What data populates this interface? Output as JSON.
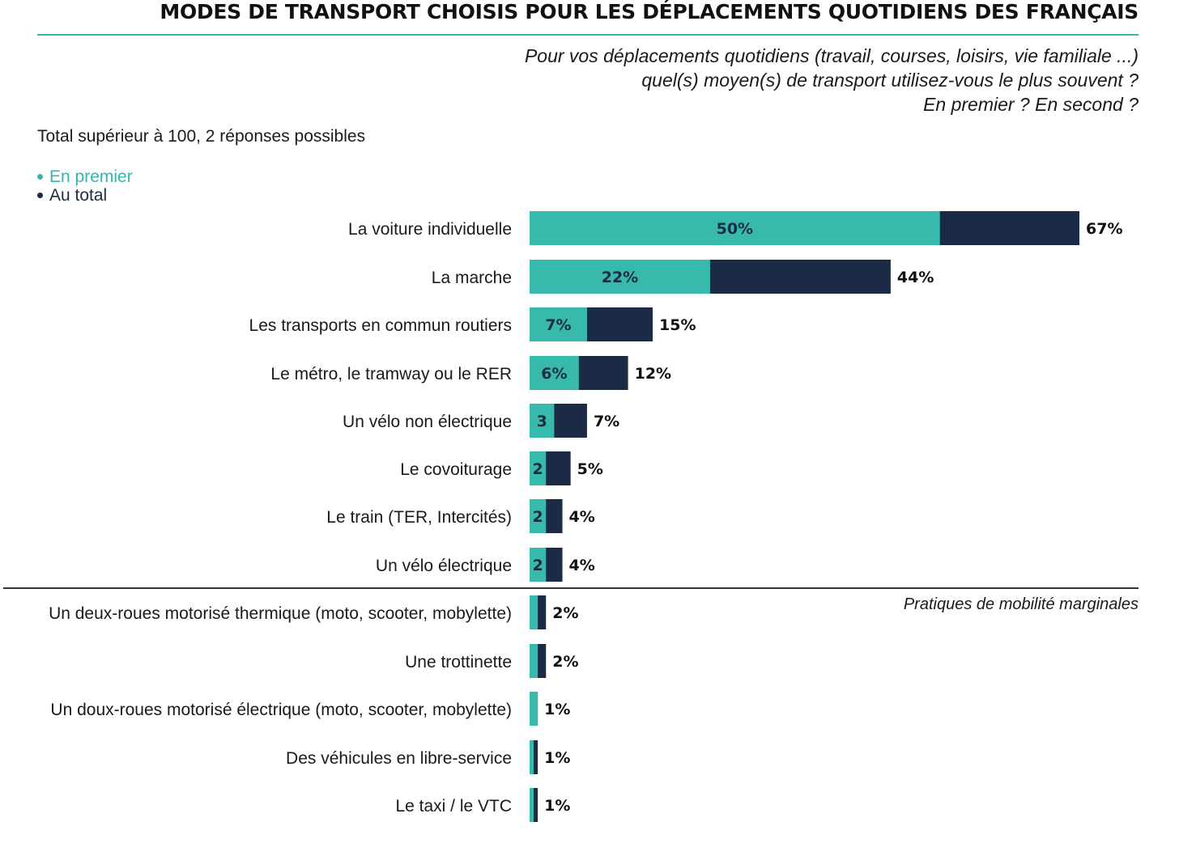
{
  "header": {
    "title": "MODES DE TRANSPORT CHOISIS POUR LES DÉPLACEMENTS QUOTIDIENS DES FRANÇAIS",
    "question_lines": [
      "Pour vos déplacements quotidiens (travail, courses, loisirs, vie familiale ...)",
      "quel(s) moyen(s) de transport utilisez-vous le plus souvent ?",
      "En premier ? En second ?"
    ],
    "note": "Total supérieur à 100, 2 réponses possibles"
  },
  "legend": {
    "first": "En premier",
    "total": "Au total"
  },
  "marginal_note": "Pratiques de mobilité marginales",
  "colors": {
    "first": "#37b9ac",
    "total": "#1b2b45",
    "title_rule": "#37b5aa"
  },
  "chart_data": {
    "type": "bar",
    "orientation": "horizontal",
    "categories": [
      "La voiture individuelle",
      "La marche",
      "Les transports en commun routiers",
      "Le métro, le tramway ou le RER",
      "Un vélo non électrique",
      "Le covoiturage",
      "Le train (TER, Intercités)",
      "Un vélo électrique",
      "Un deux-roues motorisé thermique (moto, scooter, mobylette)",
      "Une trottinette",
      "Un doux-roues motorisé électrique (moto, scooter, mobylette)",
      "Des véhicules en libre-service",
      "Le taxi / le VTC"
    ],
    "series": [
      {
        "name": "En premier",
        "values": [
          50,
          22,
          7,
          6,
          3,
          2,
          2,
          2,
          1,
          1,
          1,
          0.5,
          0.5
        ],
        "labels": [
          "50%",
          "22%",
          "7%",
          "6%",
          "3",
          "2",
          "2",
          "2",
          "",
          "",
          "",
          "",
          ""
        ]
      },
      {
        "name": "Au total",
        "values": [
          67,
          44,
          15,
          12,
          7,
          5,
          4,
          4,
          2,
          2,
          1,
          1,
          1
        ],
        "labels": [
          "67%",
          "44%",
          "15%",
          "12%",
          "7%",
          "5%",
          "4%",
          "4%",
          "2%",
          "2%",
          "1%",
          "1%",
          "1%"
        ]
      }
    ],
    "xlim": [
      0,
      67
    ],
    "grid": false,
    "legend_position": "top-left"
  }
}
